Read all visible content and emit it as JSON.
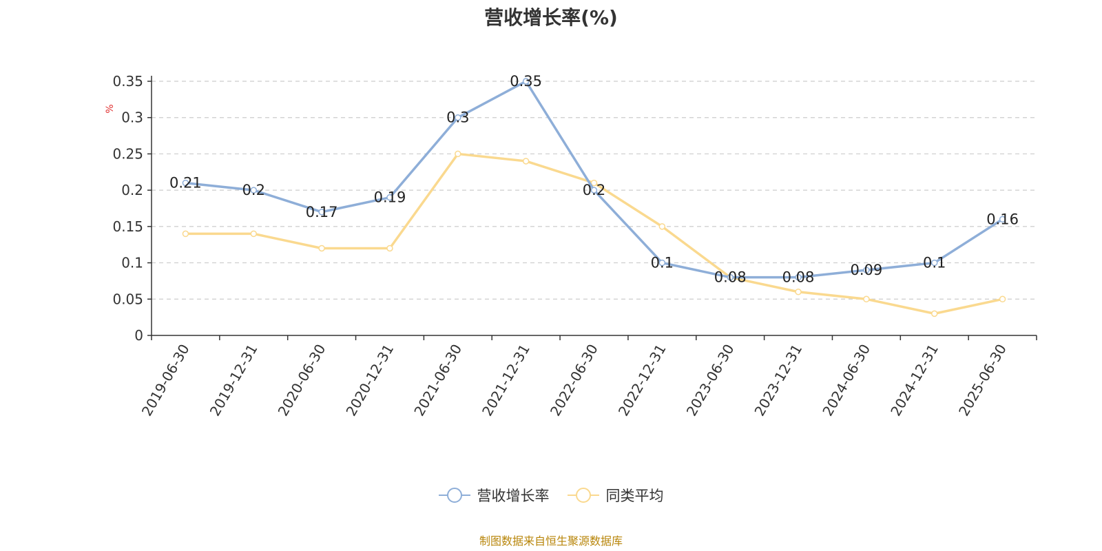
{
  "chart_data": {
    "type": "line",
    "title": "营收增长率(%)",
    "ylabel": "%",
    "xlabel": "",
    "ylim": [
      0,
      0.35
    ],
    "yticks": [
      0,
      0.05,
      0.1,
      0.15,
      0.2,
      0.25,
      0.3,
      0.35
    ],
    "ytick_labels": [
      "0",
      "0.05",
      "0.1",
      "0.15",
      "0.2",
      "0.25",
      "0.3",
      "0.35"
    ],
    "grid": true,
    "legend_position": "bottom-center",
    "categories": [
      "2019-06-30",
      "2019-12-31",
      "2020-06-30",
      "2020-12-31",
      "2021-06-30",
      "2021-12-31",
      "2022-06-30",
      "2022-12-31",
      "2023-06-30",
      "2023-12-31",
      "2024-06-30",
      "2024-12-31",
      "2025-06-30"
    ],
    "series": [
      {
        "name": "营收增长率",
        "color": "#8eaed8",
        "values": [
          0.21,
          0.2,
          0.17,
          0.19,
          0.3,
          0.35,
          0.2,
          0.1,
          0.08,
          0.08,
          0.09,
          0.1,
          0.16
        ],
        "labels": [
          "0.21",
          "0.2",
          "0.17",
          "0.19",
          "0.3",
          "0.35",
          "0.2",
          "0.1",
          "0.08",
          "0.08",
          "0.09",
          "0.1",
          "0.16"
        ]
      },
      {
        "name": "同类平均",
        "color": "#fad98f",
        "values": [
          0.14,
          0.14,
          0.12,
          0.12,
          0.25,
          0.24,
          0.21,
          0.15,
          0.08,
          0.06,
          0.05,
          0.03,
          0.05
        ]
      }
    ],
    "source": "制图数据来自恒生聚源数据库"
  }
}
